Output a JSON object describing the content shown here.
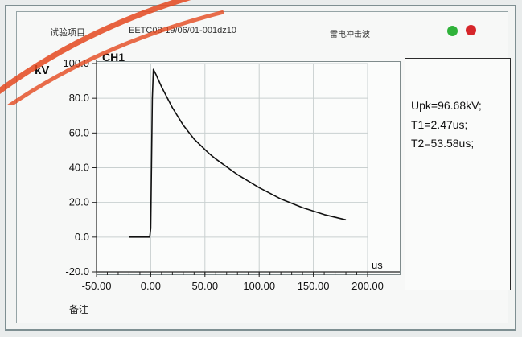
{
  "header": {
    "test_item_label": "试验项目",
    "record_code": "EETC08-19/06/01-001dz10",
    "waveform_type": "雷电冲击波"
  },
  "status_colors": {
    "green": "#2fb23a",
    "red": "#d6262a"
  },
  "results": {
    "upk": "Upk=96.68kV;",
    "t1": "T1=2.47us;",
    "t2": "T2=53.58us;"
  },
  "footer": {
    "remark_label": "备注"
  },
  "chart_data": {
    "type": "line",
    "channel_label": "CH1",
    "ylabel": "kV",
    "xlabel": "us",
    "xlim": [
      -50,
      200
    ],
    "ylim": [
      -20,
      100
    ],
    "x_ticks": [
      "-50.00",
      "0.00",
      "50.00",
      "100.00",
      "150.00",
      "200.00"
    ],
    "y_ticks": [
      "100.0",
      "80.0",
      "60.0",
      "40.0",
      "20.0",
      "0.0",
      "-20.0"
    ],
    "grid": true,
    "line_color": "#111111",
    "series": [
      {
        "x": [
          -20,
          -10,
          -1,
          0,
          1.5,
          2.47,
          5,
          10,
          20,
          30,
          40,
          53.58,
          60,
          80,
          100,
          120,
          140,
          160,
          180
        ],
        "y": [
          0,
          0,
          0,
          5,
          80,
          96.68,
          93.5,
          86.5,
          74.5,
          64.5,
          56.5,
          48.3,
          45.0,
          36.0,
          28.5,
          22.0,
          17.0,
          13.0,
          10.0
        ]
      }
    ]
  }
}
